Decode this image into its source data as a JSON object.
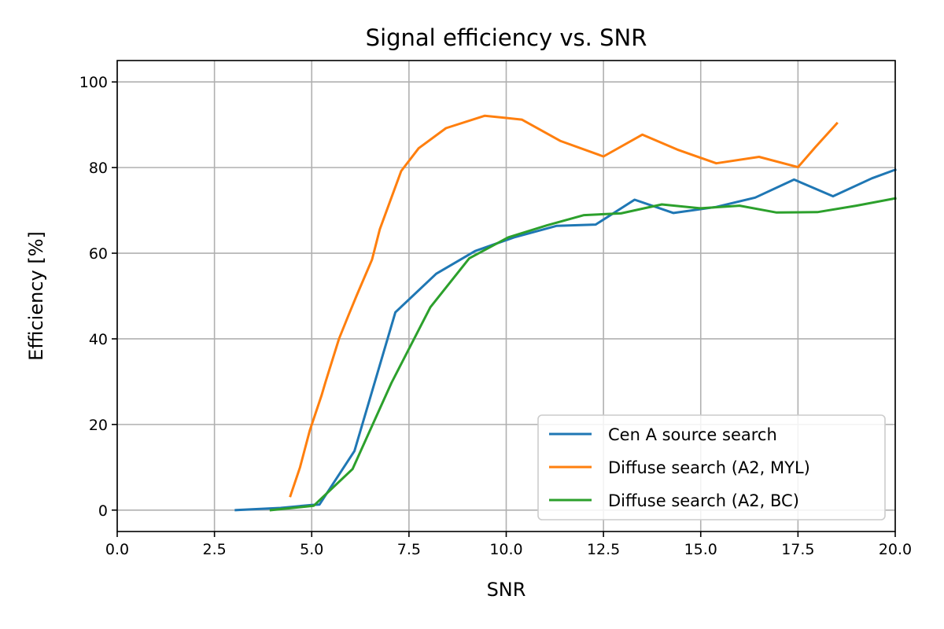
{
  "chart_data": {
    "type": "line",
    "title": "Signal efficiency vs. SNR",
    "xlabel": "SNR",
    "ylabel": "Efficiency [%]",
    "xlim": [
      0,
      20
    ],
    "ylim": [
      -5,
      105
    ],
    "xticks": [
      "0.0",
      "2.5",
      "5.0",
      "7.5",
      "10.0",
      "12.5",
      "15.0",
      "17.5",
      "20.0"
    ],
    "yticks": [
      "0",
      "20",
      "40",
      "60",
      "80",
      "100"
    ],
    "grid": true,
    "legend_position": "lower-right",
    "series": [
      {
        "name": "Cen A source search",
        "color": "#1f77b4",
        "x": [
          3.05,
          4.2,
          5.0,
          5.2,
          6.1,
          7.15,
          8.2,
          9.2,
          10.2,
          11.3,
          12.3,
          13.3,
          14.3,
          15.4,
          16.4,
          17.4,
          18.4,
          19.4,
          20.0
        ],
        "y": [
          0,
          0.5,
          1.2,
          1.3,
          13.8,
          46.2,
          55.2,
          60.5,
          63.7,
          66.4,
          66.7,
          72.5,
          69.4,
          70.8,
          73.0,
          77.2,
          73.3,
          77.5,
          79.5
        ]
      },
      {
        "name": "Diffuse search (A2, MYL)",
        "color": "#ff7f0e",
        "x": [
          4.45,
          4.7,
          4.95,
          5.25,
          5.35,
          5.7,
          5.95,
          6.15,
          6.55,
          6.75,
          7.3,
          7.75,
          8.45,
          9.45,
          10.4,
          11.4,
          12.5,
          13.5,
          14.4,
          15.4,
          16.5,
          17.5,
          17.95,
          18.5
        ],
        "y": [
          3.3,
          10.0,
          18.6,
          26.7,
          29.8,
          40.0,
          45.6,
          50.0,
          58.5,
          65.6,
          79.2,
          84.5,
          89.2,
          92.1,
          91.2,
          86.2,
          82.6,
          87.7,
          84.2,
          81.0,
          82.5,
          80.1,
          84.8,
          90.3
        ]
      },
      {
        "name": "Diffuse search (A2, BC)",
        "color": "#2ca02c",
        "x": [
          3.95,
          5.05,
          6.05,
          7.05,
          8.05,
          9.05,
          10.05,
          11.05,
          12.0,
          12.95,
          14.0,
          15.0,
          16.0,
          16.95,
          18.0,
          19.0,
          20.0
        ],
        "y": [
          0,
          1.0,
          9.6,
          29.7,
          47.4,
          58.8,
          63.7,
          66.5,
          68.9,
          69.3,
          71.4,
          70.5,
          71.1,
          69.5,
          69.6,
          71.1,
          72.8
        ]
      }
    ]
  }
}
